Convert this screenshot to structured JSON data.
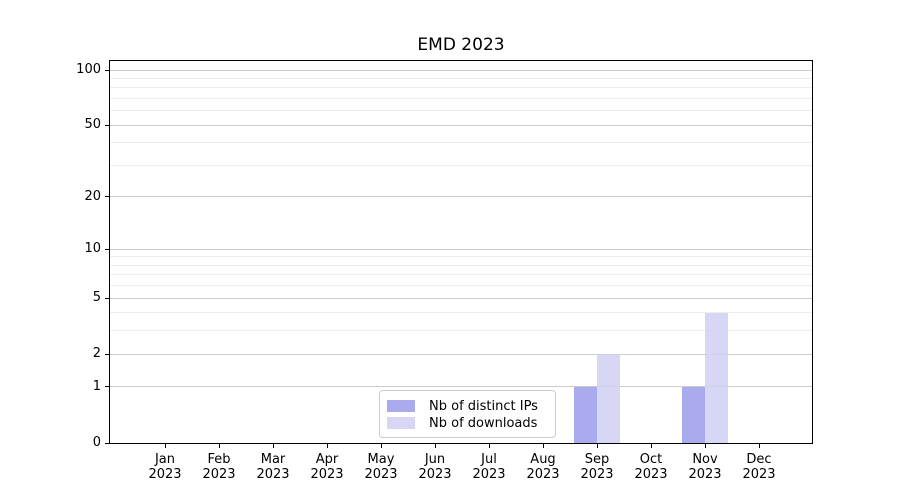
{
  "chart_data": {
    "type": "bar",
    "title": "EMD 2023",
    "categories": [
      "Jan",
      "Feb",
      "Mar",
      "Apr",
      "May",
      "Jun",
      "Jul",
      "Aug",
      "Sep",
      "Oct",
      "Nov",
      "Dec"
    ],
    "x_year_label": "2023",
    "series": [
      {
        "name": "Nb of distinct IPs",
        "color": "#9b9beb",
        "values": [
          0,
          0,
          0,
          0,
          0,
          0,
          0,
          0,
          1,
          0,
          1,
          0
        ]
      },
      {
        "name": "Nb of downloads",
        "color": "#d0d0f3",
        "values": [
          0,
          0,
          0,
          0,
          0,
          0,
          0,
          0,
          2,
          0,
          4,
          0
        ]
      }
    ],
    "yscale": "log1p",
    "ylim": [
      0,
      112
    ],
    "y_major_ticks": [
      0,
      1,
      2,
      5,
      10,
      20,
      50,
      100
    ],
    "y_minor_ticks": [
      3,
      4,
      6,
      7,
      8,
      9,
      30,
      40,
      60,
      70,
      80,
      90
    ],
    "grid": true,
    "legend_position": "lower center",
    "colors": {
      "major_grid": "#cccccc",
      "minor_grid": "#ededed",
      "axis": "#000000",
      "legend_border": "#cccccc",
      "background": "#ffffff"
    }
  }
}
